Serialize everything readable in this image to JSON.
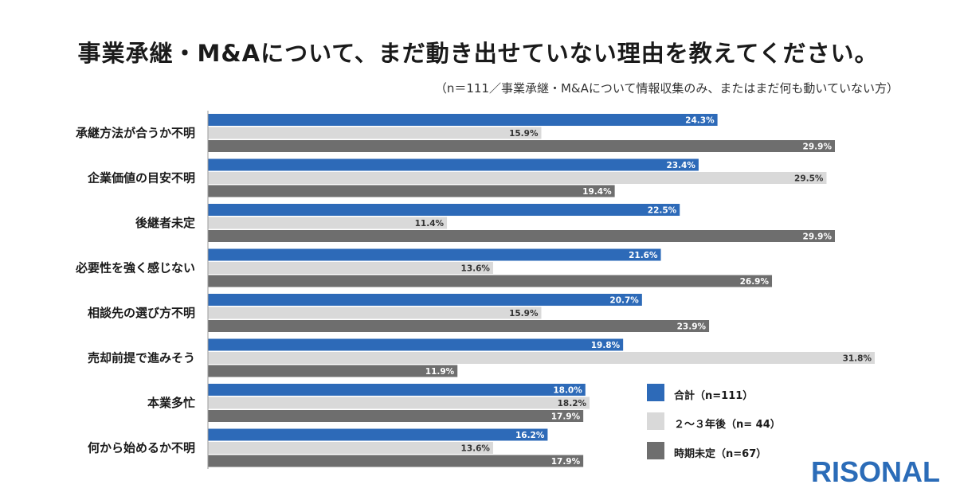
{
  "title": "事業承継・M&Aについて、まだ動き出せていない理由を教えてください。",
  "subtitle": "（n＝111／事業承継・M&Aについて情報収集のみ、またはまだ何も動いていない方）",
  "logo": "RISONAL",
  "colors": {
    "total": "#2d6ab8",
    "two_three_years": "#d9d9d9",
    "undecided": "#6e6e6e"
  },
  "chart_data": {
    "type": "bar",
    "orientation": "horizontal",
    "categories": [
      "承継方法が合うか不明",
      "企業価値の目安不明",
      "後継者未定",
      "必要性を強く感じない",
      "相談先の選び方不明",
      "売却前提で進みそう",
      "本業多忙",
      "何から始めるか不明"
    ],
    "series": [
      {
        "name": "合計（n=111）",
        "values": [
          24.3,
          23.4,
          22.5,
          21.6,
          20.7,
          19.8,
          18.0,
          16.2
        ],
        "labels": [
          "24.3%",
          "23.4%",
          "22.5%",
          "21.6%",
          "20.7%",
          "19.8%",
          "18.0%",
          "16.2%"
        ]
      },
      {
        "name": "２～３年後（n= 44）",
        "values": [
          15.9,
          29.5,
          11.4,
          13.6,
          15.9,
          31.8,
          18.2,
          13.6
        ],
        "labels": [
          "15.9%",
          "29.5%",
          "11.4%",
          "13.6%",
          "15.9%",
          "31.8%",
          "18.2%",
          "13.6%"
        ]
      },
      {
        "name": "時期未定（n=67）",
        "values": [
          29.9,
          19.4,
          29.9,
          26.9,
          23.9,
          11.9,
          17.9,
          17.9
        ],
        "labels": [
          "29.9%",
          "19.4%",
          "29.9%",
          "26.9%",
          "23.9%",
          "11.9%",
          "17.9%",
          "17.9%"
        ]
      }
    ],
    "xlim": [
      0,
      31.8
    ],
    "grid": false,
    "legend_position": "bottom-right"
  }
}
